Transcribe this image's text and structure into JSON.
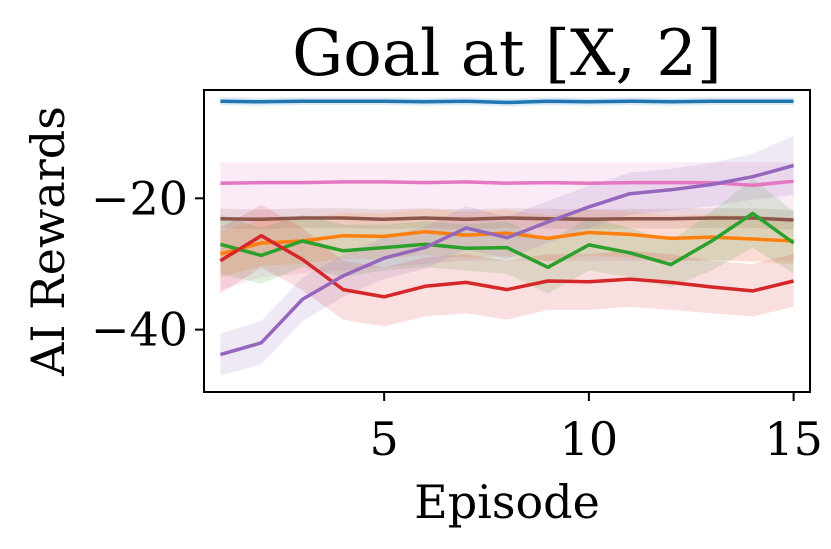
{
  "chart_data": {
    "type": "line",
    "title": "Goal at [X, 2]",
    "xlabel": "Episode",
    "ylabel": "AI Rewards",
    "xlim": [
      0.6,
      15.4
    ],
    "ylim": [
      -49.5,
      -3.5
    ],
    "xticks": [
      5,
      10,
      15
    ],
    "xtick_labels": [
      "5",
      "10",
      "15"
    ],
    "yticks": [
      -20,
      -40
    ],
    "ytick_labels": [
      "−20",
      "−40"
    ],
    "grid": false,
    "x": [
      1,
      2,
      3,
      4,
      5,
      6,
      7,
      8,
      9,
      10,
      11,
      12,
      13,
      14,
      15
    ],
    "series": [
      {
        "color": "#1f77b4",
        "values": [
          -5.2,
          -5.3,
          -5.2,
          -5.2,
          -5.2,
          -5.3,
          -5.2,
          -5.4,
          -5.2,
          -5.3,
          -5.2,
          -5.3,
          -5.2,
          -5.2,
          -5.2
        ],
        "lower": [
          -5.8,
          -5.9,
          -5.8,
          -5.8,
          -5.8,
          -5.9,
          -5.8,
          -6.0,
          -5.8,
          -5.9,
          -5.8,
          -5.9,
          -5.8,
          -5.8,
          -5.8
        ],
        "upper": [
          -4.6,
          -4.7,
          -4.6,
          -4.6,
          -4.6,
          -4.7,
          -4.6,
          -4.8,
          -4.6,
          -4.7,
          -4.6,
          -4.7,
          -4.6,
          -4.6,
          -4.6
        ]
      },
      {
        "color": "#e377c2",
        "values": [
          -17.7,
          -17.6,
          -17.6,
          -17.5,
          -17.5,
          -17.6,
          -17.5,
          -17.7,
          -17.6,
          -17.7,
          -17.6,
          -17.6,
          -17.6,
          -18.0,
          -17.4
        ],
        "lower": [
          -34.0,
          -32.0,
          -31.5,
          -31.0,
          -30.5,
          -30.0,
          -29.5,
          -29.5,
          -29.5,
          -29.5,
          -29.5,
          -29.5,
          -29.5,
          -29.5,
          -29.5
        ],
        "upper": [
          -14.5,
          -14.5,
          -14.5,
          -14.5,
          -14.5,
          -14.5,
          -14.5,
          -14.5,
          -14.5,
          -14.5,
          -14.5,
          -14.5,
          -14.5,
          -14.5,
          -14.5
        ]
      },
      {
        "color": "#8c564b",
        "values": [
          -23.1,
          -23.2,
          -23.0,
          -23.0,
          -23.2,
          -23.0,
          -23.2,
          -23.0,
          -23.1,
          -23.2,
          -23.1,
          -23.1,
          -23.0,
          -23.0,
          -23.3
        ],
        "lower": [
          -24.6,
          -24.7,
          -24.5,
          -24.5,
          -24.7,
          -24.5,
          -24.7,
          -24.5,
          -24.6,
          -24.7,
          -24.6,
          -24.6,
          -24.5,
          -24.5,
          -24.8
        ],
        "upper": [
          -21.6,
          -21.7,
          -21.5,
          -21.5,
          -21.7,
          -21.5,
          -21.7,
          -21.5,
          -21.6,
          -21.7,
          -21.6,
          -21.6,
          -21.5,
          -21.5,
          -21.8
        ]
      },
      {
        "color": "#ff7f0e",
        "values": [
          -28.5,
          -26.8,
          -26.5,
          -25.7,
          -25.8,
          -25.1,
          -25.6,
          -25.3,
          -26.1,
          -25.2,
          -25.5,
          -26.1,
          -25.9,
          -26.2,
          -26.5
        ],
        "lower": [
          -32.0,
          -30.3,
          -30.0,
          -29.2,
          -29.3,
          -28.6,
          -29.1,
          -28.8,
          -29.6,
          -28.7,
          -29.0,
          -29.6,
          -29.4,
          -29.7,
          -30.0
        ],
        "upper": [
          -25.0,
          -23.3,
          -23.0,
          -22.2,
          -22.3,
          -21.6,
          -22.1,
          -21.8,
          -22.6,
          -21.7,
          -22.0,
          -22.6,
          -22.4,
          -22.7,
          -23.0
        ]
      },
      {
        "color": "#2ca02c",
        "values": [
          -27.0,
          -28.7,
          -26.5,
          -28.0,
          -27.5,
          -27.0,
          -27.6,
          -27.5,
          -30.5,
          -27.1,
          -28.3,
          -30.1,
          -26.5,
          -22.3,
          -26.8
        ],
        "lower": [
          -31.5,
          -33.0,
          -30.5,
          -32.0,
          -31.0,
          -30.5,
          -31.0,
          -31.5,
          -34.5,
          -31.0,
          -32.0,
          -33.5,
          -31.0,
          -27.5,
          -31.5
        ],
        "upper": [
          -22.5,
          -24.5,
          -22.5,
          -24.0,
          -24.0,
          -23.5,
          -24.0,
          -23.5,
          -26.5,
          -23.0,
          -24.5,
          -26.5,
          -22.0,
          -17.0,
          -22.0
        ]
      },
      {
        "color": "#d62728",
        "values": [
          -29.5,
          -25.7,
          -29.3,
          -33.9,
          -35.0,
          -33.4,
          -32.8,
          -33.9,
          -32.6,
          -32.7,
          -32.3,
          -32.8,
          -33.5,
          -34.1,
          -32.6
        ],
        "lower": [
          -34.5,
          -30.5,
          -34.0,
          -38.5,
          -39.5,
          -38.0,
          -37.5,
          -38.5,
          -37.0,
          -37.0,
          -36.5,
          -37.0,
          -37.5,
          -38.0,
          -36.5
        ],
        "upper": [
          -24.5,
          -21.0,
          -24.5,
          -29.5,
          -30.5,
          -29.0,
          -28.5,
          -29.5,
          -28.5,
          -28.5,
          -28.0,
          -28.5,
          -29.5,
          -30.0,
          -28.5
        ]
      },
      {
        "color": "#9467bd",
        "values": [
          -43.8,
          -42.0,
          -35.4,
          -31.8,
          -29.1,
          -27.5,
          -24.5,
          -26.0,
          -23.6,
          -21.3,
          -19.3,
          -18.7,
          -17.9,
          -16.7,
          -15.0
        ],
        "lower": [
          -47.0,
          -45.3,
          -38.7,
          -35.0,
          -32.3,
          -30.7,
          -27.8,
          -29.2,
          -26.8,
          -24.5,
          -22.5,
          -21.9,
          -21.2,
          -20.2,
          -19.5
        ],
        "upper": [
          -40.6,
          -38.7,
          -32.1,
          -28.6,
          -25.9,
          -24.3,
          -21.2,
          -22.8,
          -20.4,
          -18.1,
          -16.1,
          -15.5,
          -14.6,
          -13.2,
          -10.5
        ]
      }
    ]
  }
}
